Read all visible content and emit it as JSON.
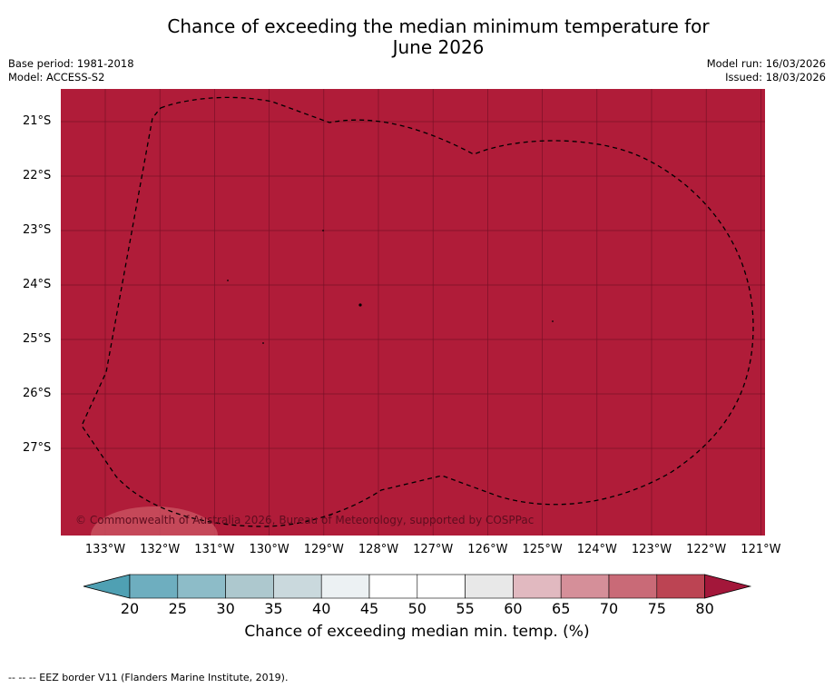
{
  "title_line1": "Chance of exceeding the median minimum temperature for",
  "title_line2": "June 2026",
  "meta_left": [
    "Base period: 1981-2018",
    "Model: ACCESS-S2"
  ],
  "meta_right": [
    "Model run: 16/03/2026",
    "Issued: 18/03/2026"
  ],
  "map": {
    "background_color": "#b01c39",
    "lat_labels": [
      "21°S",
      "22°S",
      "23°S",
      "24°S",
      "25°S",
      "26°S",
      "27°S"
    ],
    "lon_labels": [
      "133°W",
      "132°W",
      "131°W",
      "130°W",
      "129°W",
      "128°W",
      "127°W",
      "126°W",
      "125°W",
      "124°W",
      "123°W",
      "122°W",
      "121°W"
    ],
    "copyright": "© Commonwealth of Australia 2026, Bureau of Meteorology, supported by COSPPac"
  },
  "colorbar": {
    "ticks": [
      "20",
      "25",
      "30",
      "35",
      "40",
      "45",
      "50",
      "55",
      "60",
      "65",
      "70",
      "75",
      "80"
    ],
    "colors": [
      "#4fa0b3",
      "#6eaebf",
      "#8dbcc8",
      "#adc8ce",
      "#cad9dd",
      "#ecf1f3",
      "#ffffff",
      "#ffffff",
      "#e8e8e8",
      "#e1b9c0",
      "#d58f99",
      "#c96a77",
      "#bc4453",
      "#a3173a"
    ],
    "label": "Chance of exceeding median min. temp. (%)"
  },
  "footnote": "--  --  -- EEZ border V11 (Flanders Marine Institute, 2019)."
}
